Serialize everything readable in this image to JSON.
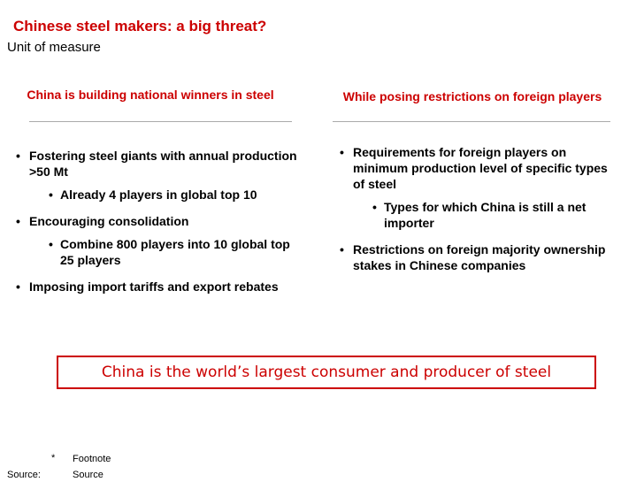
{
  "slide": {
    "title": "Chinese steel makers: a big threat?",
    "subtitle": "Unit of measure"
  },
  "left_column": {
    "heading": "China is building national winners in steel",
    "items": [
      {
        "level": 1,
        "text": "Fostering steel giants with annual production >50 Mt"
      },
      {
        "level": 2,
        "text": "Already 4 players in global top 10"
      },
      {
        "level": 1,
        "text": "Encouraging consolidation"
      },
      {
        "level": 2,
        "text": "Combine 800 players into 10 global top 25 players"
      },
      {
        "level": 1,
        "text": "Imposing import tariffs and export rebates"
      }
    ]
  },
  "right_column": {
    "heading": "While posing restrictions on foreign players",
    "items": [
      {
        "level": 1,
        "text": "Requirements for foreign players on minimum production level of specific types of steel"
      },
      {
        "level": 2,
        "text": "Types for which China is still a net importer"
      },
      {
        "level": 1,
        "text": "Restrictions on foreign majority ownership stakes in Chinese companies"
      }
    ]
  },
  "callout": {
    "text": "China is the world’s largest consumer and producer of steel"
  },
  "footer": {
    "footnote_marker": "*",
    "footnote_text": "Footnote",
    "source_label": "Source:",
    "source_text": "Source"
  },
  "colors": {
    "accent": "#cc0000",
    "text": "#000000",
    "rule": "#aaaaaa"
  }
}
